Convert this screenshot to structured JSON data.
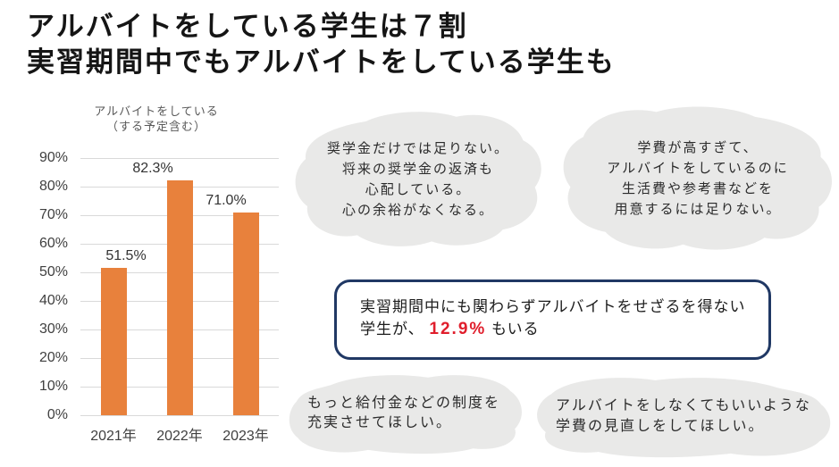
{
  "title": {
    "line1": "アルバイトをしている学生は７割",
    "line2": "実習期間中でもアルバイトをしている学生も"
  },
  "chart_data": {
    "type": "bar",
    "title": "アルバイトをしている（する予定含む）",
    "title_line1": "アルバイトをしている",
    "title_line2": "（する予定含む）",
    "categories": [
      "2021年",
      "2022年",
      "2023年"
    ],
    "values": [
      51.5,
      82.3,
      71.0
    ],
    "labels": [
      "51.5%",
      "82.3%",
      "71.0%"
    ],
    "xlabel": "",
    "ylabel": "",
    "ylim": [
      0,
      90
    ],
    "ytick_step": 10,
    "ytick_suffix": "%",
    "grid": true,
    "legend": "none",
    "bar_color": "#E8813C"
  },
  "bubbles": [
    {
      "id": "scholarship",
      "lines": [
        "奨学金だけでは足りない。",
        "将来の奨学金の返済も",
        "心配している。",
        "心の余裕がなくなる。"
      ]
    },
    {
      "id": "tuition-high",
      "lines": [
        "学費が高すぎて、",
        "アルバイトをしているのに",
        "生活費や参考書などを",
        "用意するには足りない。"
      ]
    },
    {
      "id": "benefits",
      "lines": [
        "もっと給付金などの制度を",
        "充実させてほしい。"
      ]
    },
    {
      "id": "tuition-review",
      "lines": [
        "アルバイトをしなくてもいいような",
        "学費の見直しをしてほしい。"
      ]
    }
  ],
  "callout": {
    "line1": "実習期間中にも関わらずアルバイトをせざるを得ない",
    "line2_prefix": "学生が、",
    "highlight": "12.9%",
    "line2_suffix": "もいる",
    "highlight_color": "#E01E2C",
    "border_color": "#203864"
  },
  "colors": {
    "bar": "#E8813C",
    "cloud": "#E9E9E8",
    "grid": "#D9D9D9"
  }
}
